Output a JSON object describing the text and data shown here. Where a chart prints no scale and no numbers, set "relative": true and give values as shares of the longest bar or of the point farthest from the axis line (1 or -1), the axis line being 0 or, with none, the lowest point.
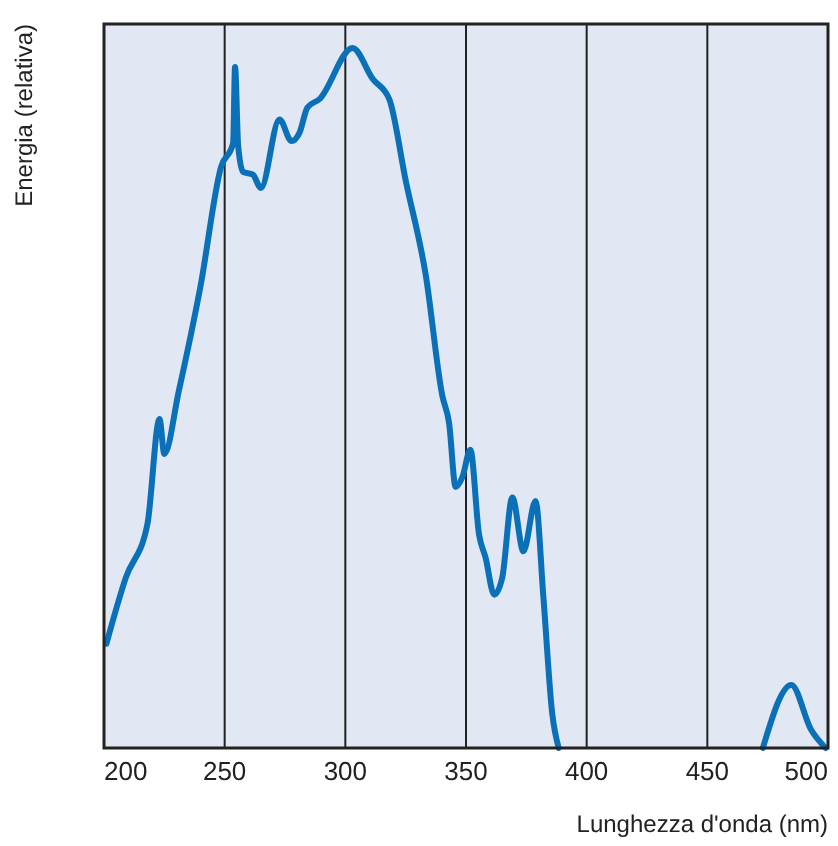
{
  "chart_data": {
    "type": "line",
    "xlabel": "Lunghezza d'onda (nm)",
    "ylabel": "Energia (relativa)",
    "relative": true,
    "xlim": [
      200,
      500
    ],
    "xticks": [
      200,
      250,
      300,
      350,
      400,
      450,
      500
    ],
    "grid": "x",
    "line_style": "solid",
    "marker": "none",
    "x": [
      201,
      209,
      218,
      223,
      225,
      231,
      240,
      248.5,
      253.5,
      254.3,
      255.6,
      257.6,
      261.7,
      265,
      272.7,
      277.7,
      281,
      284.3,
      289.3,
      303,
      311.3,
      318.2,
      325,
      333.3,
      340.2,
      343,
      345.7,
      348.5,
      351.8,
      355.4,
      358.1,
      361.7,
      365,
      369.2,
      373.8,
      378.8,
      382.1,
      385.7,
      388.4,
      430,
      473,
      484.8,
      493,
      499
    ],
    "series": [
      {
        "color": "#0a70b8",
        "values": [
          0.149,
          0.243,
          0.32,
          0.47,
          0.42,
          0.51,
          0.66,
          0.83,
          0.864,
          0.973,
          0.86,
          0.823,
          0.819,
          0.8,
          0.898,
          0.867,
          0.879,
          0.915,
          0.927,
          1.0,
          0.956,
          0.927,
          0.811,
          0.676,
          0.503,
          0.464,
          0.373,
          0.387,
          0.426,
          0.305,
          0.272,
          0.219,
          0.243,
          0.358,
          0.281,
          0.353,
          0.214,
          0.05,
          0,
          null,
          0,
          0.09,
          0.026,
          0
        ]
      }
    ]
  }
}
